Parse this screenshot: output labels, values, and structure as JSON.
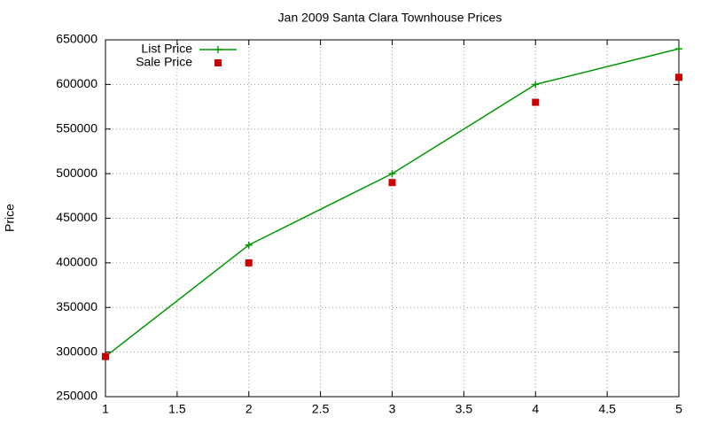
{
  "chart_data": {
    "type": "line",
    "title": "Jan 2009 Santa Clara Townhouse Prices",
    "y_label": "Price",
    "x": [
      1,
      2,
      3,
      4,
      5
    ],
    "series": [
      {
        "name": "List Price",
        "color": "#009900",
        "line": true,
        "marker": "plus",
        "values": [
          295000,
          420000,
          500000,
          600000,
          640000
        ]
      },
      {
        "name": "Sale Price",
        "color": "#cc0000",
        "line": false,
        "marker": "square",
        "values": [
          295000,
          400000,
          490000,
          580000,
          608000
        ]
      }
    ],
    "xlim": [
      1,
      5
    ],
    "xticks": [
      1,
      1.5,
      2,
      2.5,
      3,
      3.5,
      4,
      4.5,
      5
    ],
    "ylim": [
      250000,
      650000
    ],
    "yticks": [
      250000,
      300000,
      350000,
      400000,
      450000,
      500000,
      550000,
      600000,
      650000
    ],
    "grid": true,
    "legend": "top-left"
  }
}
